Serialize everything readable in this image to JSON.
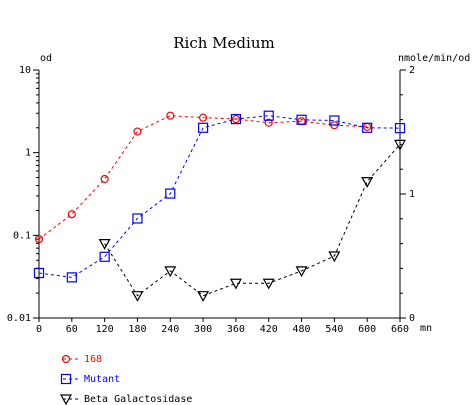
{
  "chart_data": {
    "type": "line",
    "title": "Rich Medium",
    "x": [
      0,
      60,
      120,
      180,
      240,
      300,
      360,
      420,
      480,
      540,
      600,
      660
    ],
    "x_ticks": [
      "0",
      "60",
      "120",
      "180",
      "240",
      "300",
      "360",
      "420",
      "480",
      "540",
      "600",
      "660"
    ],
    "x_unit": "mn",
    "xlim": [
      0,
      660
    ],
    "left_axis": {
      "label": "od",
      "scale": "log",
      "range": [
        0.01,
        10
      ],
      "ticks": [
        0.01,
        0.1,
        1,
        10
      ],
      "tick_labels": [
        "0.01",
        "0.1",
        "1",
        "10"
      ]
    },
    "right_axis": {
      "label": "nmole/min/od",
      "scale": "linear",
      "range": [
        0,
        2
      ],
      "ticks": [
        0,
        1,
        2
      ],
      "tick_labels": [
        "0",
        "1",
        "2"
      ]
    },
    "grid": false,
    "legend_position": "bottom-left",
    "series": [
      {
        "name": "168",
        "axis": "left",
        "marker": "circle",
        "color": "#ff0000",
        "x": [
          0,
          60,
          120,
          180,
          240,
          300,
          360,
          420,
          480,
          540,
          600
        ],
        "values": [
          0.09,
          0.18,
          0.48,
          1.8,
          2.8,
          2.65,
          2.55,
          2.3,
          2.4,
          2.15,
          2.05
        ]
      },
      {
        "name": "Mutant",
        "axis": "left",
        "marker": "square",
        "color": "#0000ff",
        "x": [
          0,
          60,
          120,
          180,
          240,
          300,
          360,
          420,
          480,
          540,
          600,
          660
        ],
        "values": [
          0.035,
          0.031,
          0.055,
          0.16,
          0.32,
          2.0,
          2.55,
          2.8,
          2.5,
          2.45,
          2.0,
          1.98
        ]
      },
      {
        "name": "Beta Galactosidase",
        "axis": "right",
        "marker": "triangle-down",
        "color": "#000000",
        "x": [
          120,
          180,
          240,
          300,
          360,
          420,
          480,
          540,
          600,
          660
        ],
        "values": [
          0.6,
          0.18,
          0.38,
          0.18,
          0.28,
          0.28,
          0.38,
          0.5,
          1.1,
          1.4
        ]
      }
    ]
  }
}
